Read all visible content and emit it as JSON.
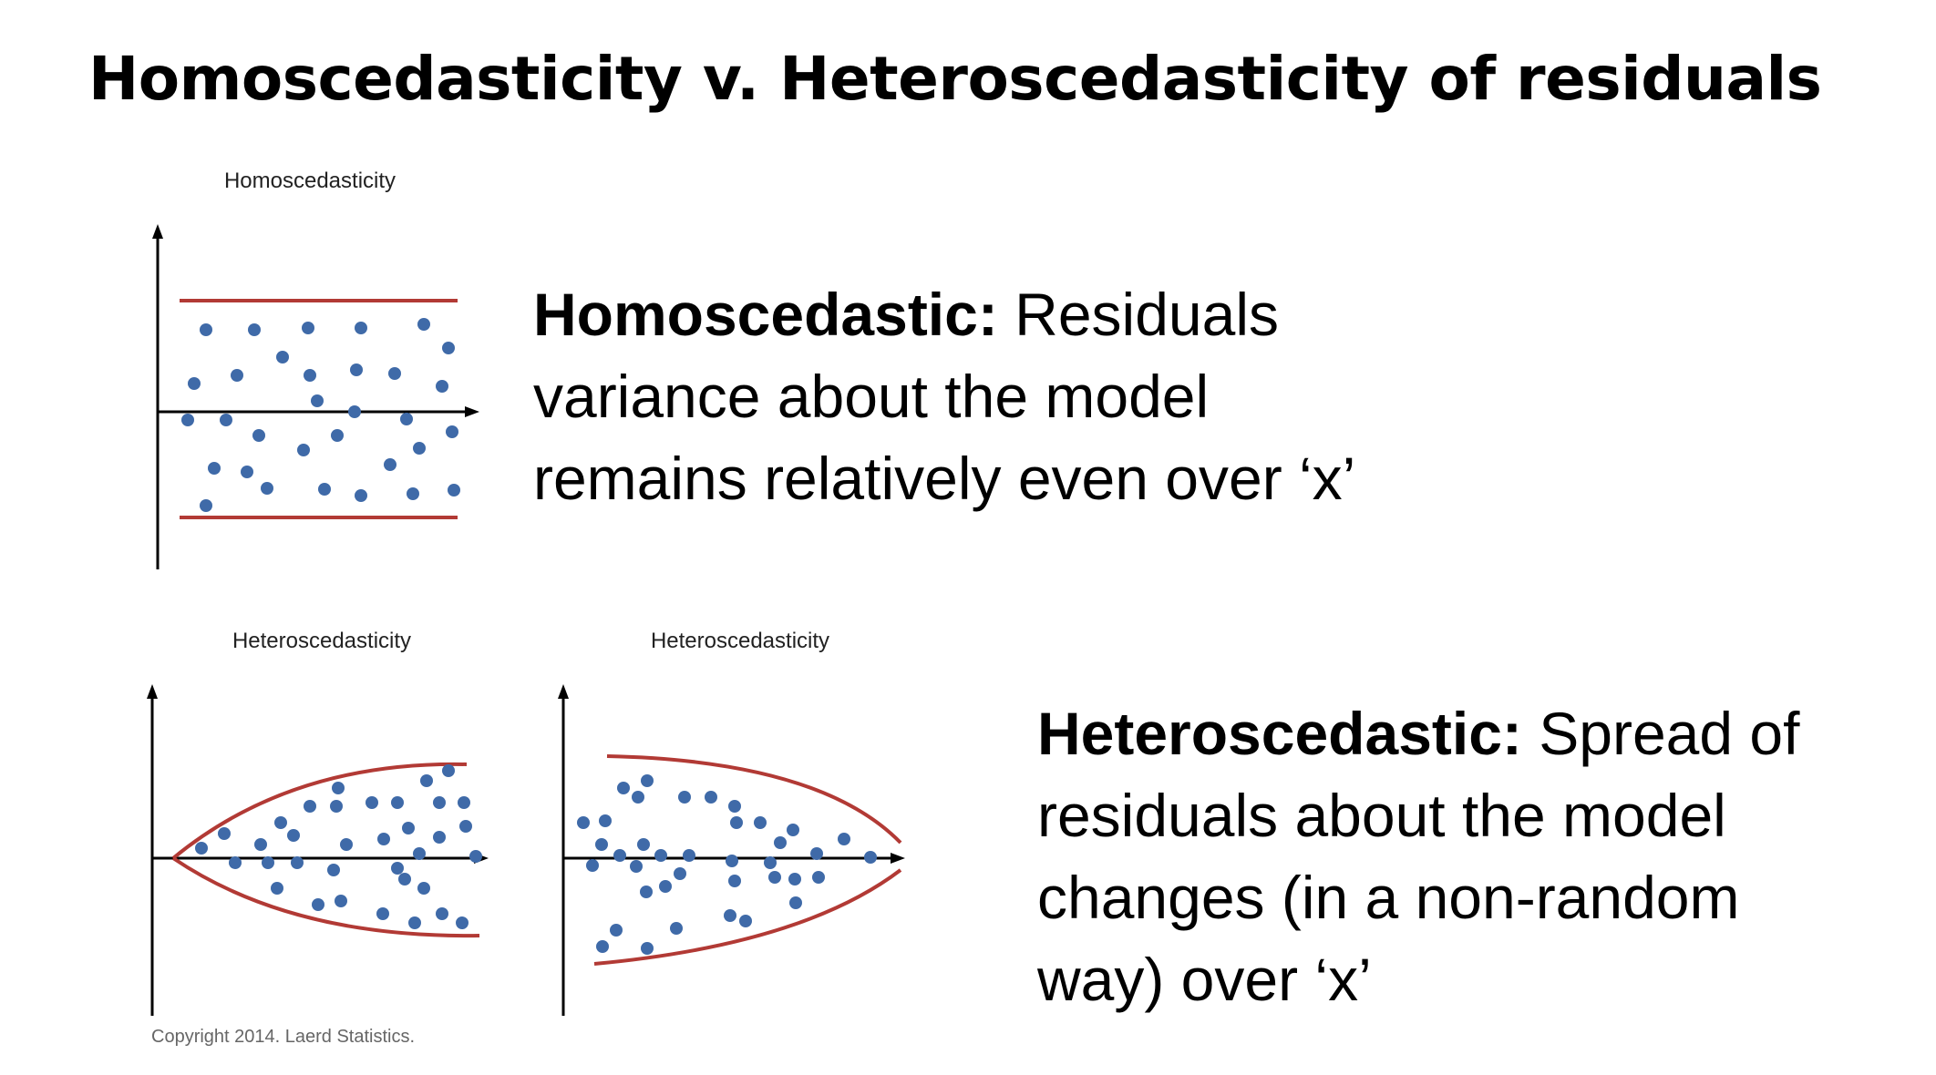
{
  "title": "Homoscedasticity v. Heteroscedasticity of residuals",
  "homoscedastic": {
    "plot_title": "Homoscedasticity",
    "term": "Homoscedastic:",
    "line1_rest": " Residuals",
    "line2": "variance about the model",
    "line3": "remains relatively even over ‘x’"
  },
  "heteroscedastic": {
    "plot_title_left": "Heteroscedasticity",
    "plot_title_right": "Heteroscedasticity",
    "term": "Heteroscedastic:",
    "line1_rest": " Spread of",
    "line2": "residuals about the model",
    "line3": "changes (in a non-random",
    "line4": "way) over ‘x’"
  },
  "copyright": "Copyright 2014. Laerd Statistics.",
  "colors": {
    "points": "#3f6aa8",
    "bounds": "#b23a35",
    "axes": "#000000"
  }
}
